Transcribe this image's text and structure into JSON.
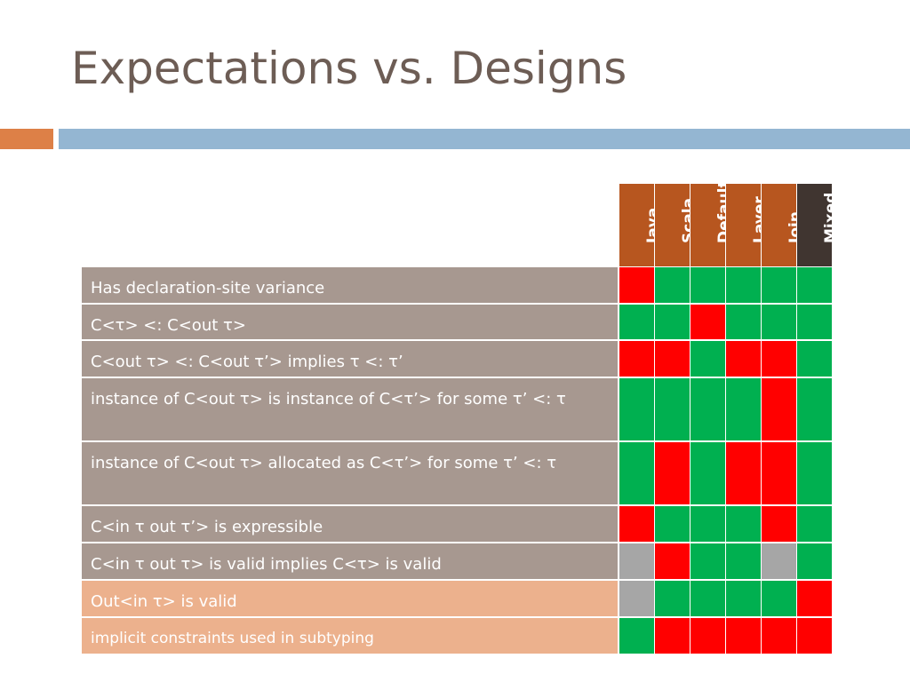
{
  "title": "Expectations vs. Designs",
  "colors": {
    "green": "#00b050",
    "red": "#ff0000",
    "gray": "#a6a6a6",
    "header_orange": "#b7561f",
    "header_dark": "#403530",
    "row_taupe": "#a79890",
    "row_peach": "#ecb18d",
    "title_text": "#6d5d55"
  },
  "columns": [
    {
      "label": "Java",
      "style": "orange"
    },
    {
      "label": "Scala",
      "style": "orange"
    },
    {
      "label": "Default",
      "style": "orange"
    },
    {
      "label": "Layer",
      "style": "orange"
    },
    {
      "label": "Join",
      "style": "orange"
    },
    {
      "label": "Mixed",
      "style": "dark"
    }
  ],
  "rows": [
    {
      "label": "Has declaration-site variance",
      "style": "taupe",
      "height": 42,
      "cells": [
        "red",
        "green",
        "green",
        "green",
        "green",
        "green"
      ]
    },
    {
      "label": "C<τ> <: C<out τ>",
      "style": "taupe",
      "height": 41,
      "cells": [
        "green",
        "green",
        "red",
        "green",
        "green",
        "green"
      ]
    },
    {
      "label": "C<out τ> <: C<out τ’> implies τ <: τ’",
      "style": "taupe",
      "height": 42,
      "cells": [
        "red",
        "red",
        "green",
        "red",
        "red",
        "green"
      ]
    },
    {
      "label": "instance of C<out τ> is instance of C<τ’> for some τ’ <: τ",
      "style": "taupe",
      "height": 72,
      "cells": [
        "green",
        "green",
        "green",
        "green",
        "red",
        "green"
      ]
    },
    {
      "label": "instance of C<out τ> allocated as C<τ’> for some τ’ <: τ",
      "style": "taupe",
      "height": 72,
      "cells": [
        "green",
        "red",
        "green",
        "red",
        "red",
        "green"
      ]
    },
    {
      "label": "C<in τ out τ’> is expressible",
      "style": "taupe",
      "height": 42,
      "cells": [
        "red",
        "green",
        "green",
        "green",
        "red",
        "green"
      ]
    },
    {
      "label": "C<in τ out τ> is valid implies C<τ> is valid",
      "style": "taupe",
      "height": 42,
      "cells": [
        "gray",
        "red",
        "green",
        "green",
        "gray",
        "green"
      ]
    },
    {
      "label": "Out<in τ> is valid",
      "style": "peach",
      "height": 42,
      "cells": [
        "gray",
        "green",
        "green",
        "green",
        "green",
        "red"
      ]
    },
    {
      "label": "implicit constraints used in subtyping",
      "style": "peach",
      "height": 42,
      "small": true,
      "cells": [
        "green",
        "red",
        "red",
        "red",
        "red",
        "red"
      ]
    }
  ]
}
